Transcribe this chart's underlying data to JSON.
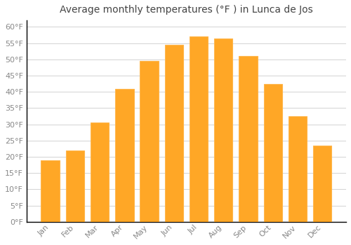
{
  "title": "Average monthly temperatures (°F ) in Lunca de Jos",
  "months": [
    "Jan",
    "Feb",
    "Mar",
    "Apr",
    "May",
    "Jun",
    "Jul",
    "Aug",
    "Sep",
    "Oct",
    "Nov",
    "Dec"
  ],
  "values": [
    19,
    22,
    30.5,
    41,
    49.5,
    54.5,
    57,
    56.5,
    51,
    42.5,
    32.5,
    23.5
  ],
  "bar_color": "#FFA726",
  "bar_edge_color": "#FFB74D",
  "background_color": "#FFFFFF",
  "grid_color": "#CCCCCC",
  "ylim": [
    0,
    62
  ],
  "yticks": [
    0,
    5,
    10,
    15,
    20,
    25,
    30,
    35,
    40,
    45,
    50,
    55,
    60
  ],
  "title_fontsize": 10,
  "tick_fontsize": 8,
  "tick_label_color": "#888888",
  "title_color": "#444444"
}
